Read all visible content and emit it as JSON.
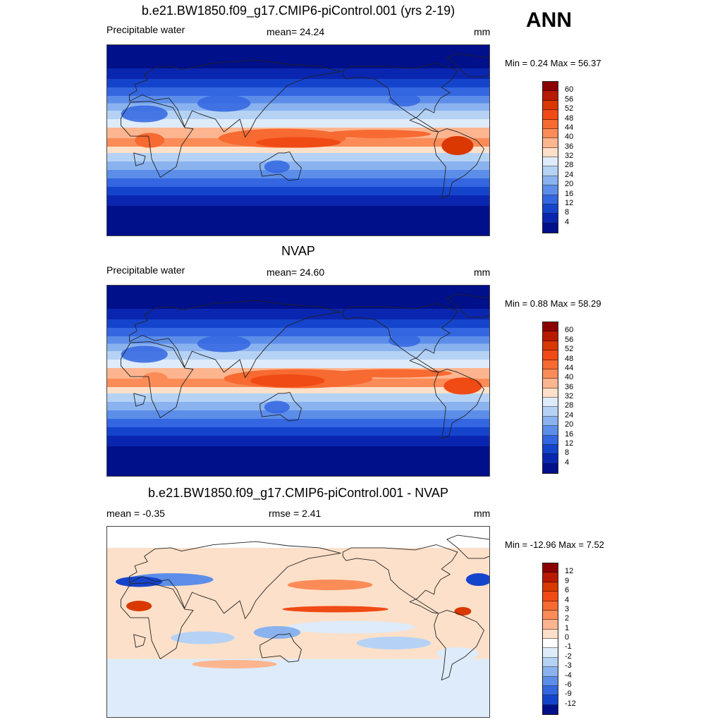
{
  "season": "ANN",
  "panels": [
    {
      "title": "b.e21.BW1850.f09_g17.CMIP6-piControl.001 (yrs 2-19)",
      "left_label": "Precipitable water",
      "center_label": "mean=  24.24",
      "units": "mm",
      "minmax": "Min =   0.24 Max =  56.37",
      "levels": [
        "60",
        "56",
        "52",
        "48",
        "44",
        "40",
        "36",
        "32",
        "28",
        "24",
        "20",
        "16",
        "12",
        "8",
        "4"
      ],
      "colors": [
        "#8b0000",
        "#b81a00",
        "#d93800",
        "#f04a15",
        "#f76a32",
        "#fb8c58",
        "#fdb58f",
        "#fde0c9",
        "#deebfa",
        "#b5d2f5",
        "#8ab2ef",
        "#5c8ee9",
        "#3366e0",
        "#1544cc",
        "#0a26b0",
        "#000f8a"
      ]
    },
    {
      "title": "NVAP",
      "left_label": "Precipitable water",
      "center_label": "mean=  24.60",
      "units": "mm",
      "minmax": "Min =   0.88 Max =  58.29",
      "levels": [
        "60",
        "56",
        "52",
        "48",
        "44",
        "40",
        "36",
        "32",
        "28",
        "24",
        "20",
        "16",
        "12",
        "8",
        "4"
      ],
      "colors": [
        "#8b0000",
        "#b81a00",
        "#d93800",
        "#f04a15",
        "#f76a32",
        "#fb8c58",
        "#fdb58f",
        "#fde0c9",
        "#deebfa",
        "#b5d2f5",
        "#8ab2ef",
        "#5c8ee9",
        "#3366e0",
        "#1544cc",
        "#0a26b0",
        "#000f8a"
      ]
    },
    {
      "title": "b.e21.BW1850.f09_g17.CMIP6-piControl.001 - NVAP",
      "left_label": "mean =  -0.35",
      "center_label": "rmse =   2.41",
      "units": "mm",
      "minmax": "Min = -12.96 Max =   7.52",
      "levels": [
        "12",
        "9",
        "6",
        "4",
        "3",
        "2",
        "1",
        "0",
        "-1",
        "-2",
        "-3",
        "-4",
        "-6",
        "-9",
        "-12"
      ],
      "colors": [
        "#8b0000",
        "#b81a00",
        "#d93800",
        "#f04a15",
        "#f76a32",
        "#fb8c58",
        "#fdb58f",
        "#fde0c9",
        "#ffffff",
        "#deebfa",
        "#b5d2f5",
        "#8ab2ef",
        "#5c8ee9",
        "#3366e0",
        "#1544cc",
        "#000f8a"
      ]
    }
  ]
}
